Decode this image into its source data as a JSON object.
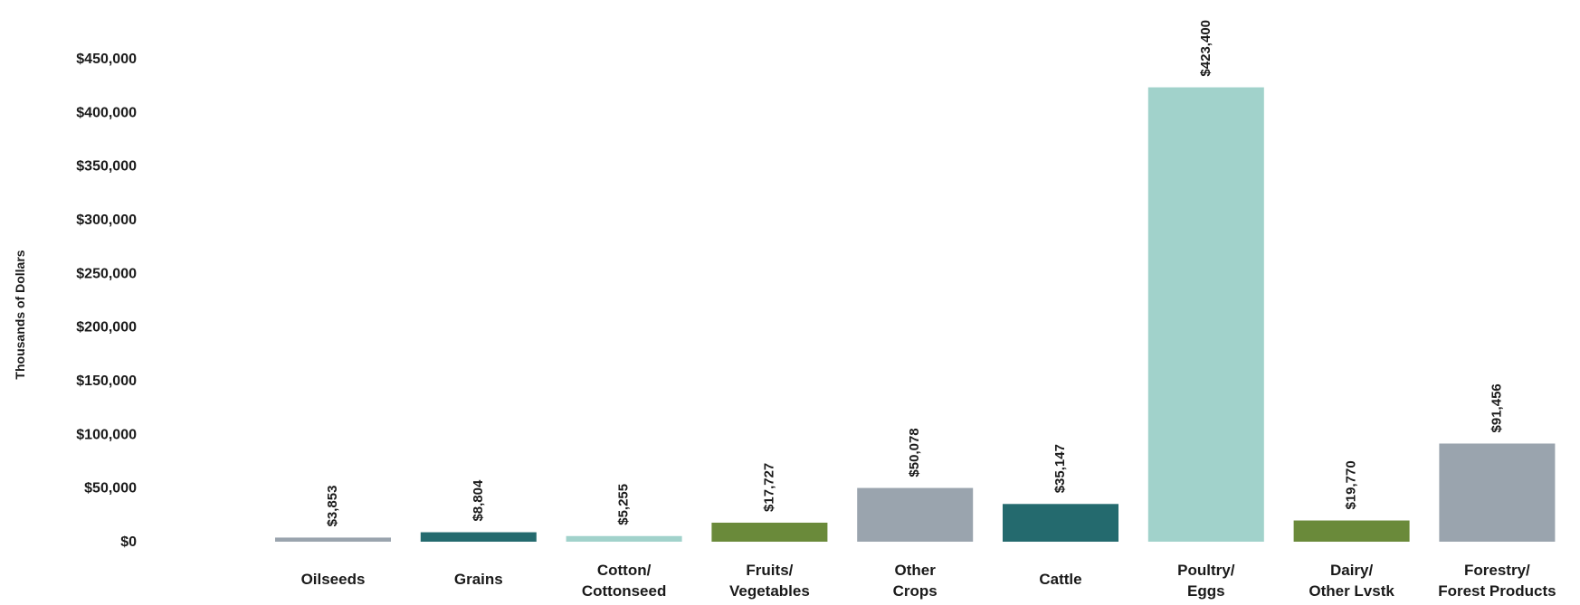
{
  "chart_data": {
    "type": "bar",
    "title": "",
    "xlabel": "",
    "ylabel": "Thousands  of Dollars",
    "ylim": [
      0,
      450000
    ],
    "y_ticks": [
      {
        "value": 0,
        "label": "$0"
      },
      {
        "value": 50000,
        "label": "$50,000"
      },
      {
        "value": 100000,
        "label": "$100,000"
      },
      {
        "value": 150000,
        "label": "$150,000"
      },
      {
        "value": 200000,
        "label": "$200,000"
      },
      {
        "value": 250000,
        "label": "$250,000"
      },
      {
        "value": 300000,
        "label": "$300,000"
      },
      {
        "value": 350000,
        "label": "$350,000"
      },
      {
        "value": 400000,
        "label": "$400,000"
      },
      {
        "value": 450000,
        "label": "$450,000"
      }
    ],
    "grid": false,
    "legend": "none",
    "categories": [
      [
        "Oilseeds"
      ],
      [
        "Grains"
      ],
      [
        "Cotton/",
        "Cottonseed"
      ],
      [
        "Fruits/",
        "Vegetables"
      ],
      [
        "Other",
        "Crops"
      ],
      [
        "Cattle"
      ],
      [
        "Poultry/",
        "Eggs"
      ],
      [
        "Dairy/",
        "Other Lvstk"
      ],
      [
        "Forestry/",
        "Forest Products"
      ]
    ],
    "values": [
      3853,
      8804,
      5255,
      17727,
      50078,
      35147,
      423400,
      19770,
      91456
    ],
    "value_labels": [
      "$3,853",
      "$8,804",
      "$5,255",
      "$17,727",
      "$50,078",
      "$35,147",
      "$423,400",
      "$19,770",
      "$91,456"
    ],
    "colors": [
      "#9aa4ae",
      "#246a6e",
      "#a1d2cb",
      "#6a8a3a",
      "#9aa4ae",
      "#246a6e",
      "#a1d2cb",
      "#6a8a3a",
      "#9aa4ae"
    ]
  }
}
